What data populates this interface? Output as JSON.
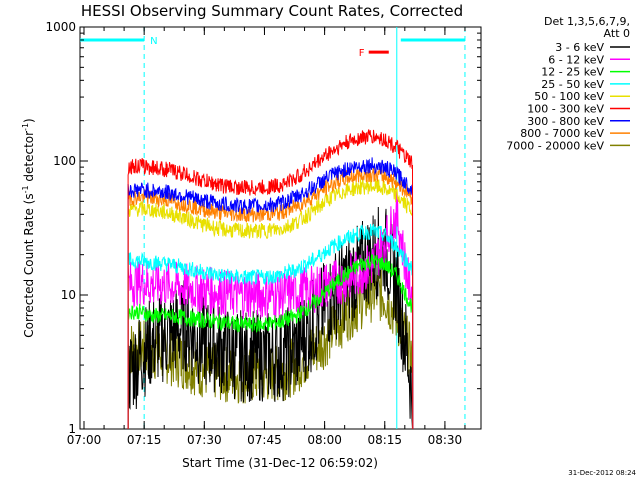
{
  "chart_data": {
    "type": "line",
    "title": "HESSI Observing Summary Count Rates, Corrected",
    "xlabel": "Start Time (31-Dec-12 06:59:02)",
    "ylabel": "Corrected Count Rate (s",
    "ylabel_sup1": "-1",
    "ylabel_mid": " detector",
    "ylabel_sup2": "-1",
    "ylabel_end": ")",
    "y_scale": "log",
    "ylim": [
      1,
      1000
    ],
    "y_ticks": [
      1,
      10,
      100,
      1000
    ],
    "y_tick_labels": [
      "1",
      "10",
      "100",
      "1000"
    ],
    "x_ticks": [
      1,
      16,
      31,
      46,
      61,
      76,
      91
    ],
    "x_tick_labels": [
      "07:00",
      "07:15",
      "07:30",
      "07:45",
      "08:00",
      "08:15",
      "08:30"
    ],
    "xlim": [
      0,
      100
    ],
    "legend_header": [
      "Det 1,3,5,6,7,9,",
      "Att 0"
    ],
    "legend_position": "right",
    "timestamp": "31-Dec-2012 08:24",
    "data_start": 12,
    "data_end": 83,
    "series": [
      {
        "name": "3 - 6 keV",
        "color": "#000000",
        "x": [
          12,
          15,
          18,
          22,
          26,
          30,
          35,
          40,
          45,
          50,
          54,
          58,
          62,
          66,
          70,
          73,
          76,
          79,
          82,
          83
        ],
        "y": [
          2.5,
          3.5,
          4.5,
          5,
          6,
          4.5,
          4,
          3.5,
          3.5,
          3.5,
          4,
          6,
          9,
          12,
          16,
          20,
          22,
          12,
          3,
          1.5
        ]
      },
      {
        "name": "6 - 12 keV",
        "color": "#ff00ff",
        "x": [
          12,
          15,
          18,
          22,
          26,
          30,
          35,
          40,
          45,
          50,
          54,
          58,
          62,
          66,
          70,
          73,
          76,
          79,
          82,
          83
        ],
        "y": [
          12,
          12.5,
          12,
          12,
          11.5,
          11,
          10.5,
          10,
          10,
          10,
          10.5,
          11,
          12,
          13,
          15,
          17,
          25,
          40,
          12,
          10
        ]
      },
      {
        "name": "12 - 25 keV",
        "color": "#00ff00",
        "x": [
          12,
          15,
          18,
          22,
          26,
          30,
          35,
          40,
          45,
          50,
          54,
          58,
          62,
          66,
          70,
          73,
          76,
          79,
          82,
          83
        ],
        "y": [
          7.5,
          7.5,
          7,
          7,
          6.8,
          6.5,
          6.3,
          6,
          6,
          6.3,
          7,
          8.5,
          11,
          14,
          17,
          18,
          17,
          14,
          9,
          8
        ]
      },
      {
        "name": "25 - 50 keV",
        "color": "#00ffff",
        "x": [
          12,
          15,
          18,
          22,
          26,
          30,
          35,
          40,
          45,
          50,
          54,
          58,
          62,
          66,
          70,
          73,
          76,
          79,
          82,
          83
        ],
        "y": [
          18,
          18,
          17.5,
          17,
          16,
          15,
          14,
          13.5,
          13.5,
          14,
          15.5,
          18,
          22,
          26,
          29,
          30,
          28,
          23,
          17,
          15
        ]
      },
      {
        "name": "50 - 100 keV",
        "color": "#e8e000",
        "x": [
          12,
          15,
          18,
          22,
          26,
          30,
          35,
          40,
          45,
          50,
          54,
          58,
          62,
          66,
          70,
          73,
          76,
          79,
          82,
          83
        ],
        "y": [
          43,
          44,
          43,
          41,
          38,
          34,
          31,
          30,
          30,
          31,
          35,
          42,
          52,
          60,
          64,
          65,
          62,
          55,
          45,
          42
        ]
      },
      {
        "name": "100 - 300 keV",
        "color": "#ff0000",
        "x": [
          12,
          15,
          18,
          22,
          26,
          30,
          35,
          40,
          45,
          50,
          54,
          58,
          62,
          66,
          70,
          73,
          76,
          79,
          82,
          83
        ],
        "y": [
          90,
          92,
          90,
          86,
          80,
          72,
          66,
          63,
          63,
          66,
          75,
          92,
          115,
          135,
          150,
          152,
          145,
          125,
          100,
          95
        ]
      },
      {
        "name": "300 - 800 keV",
        "color": "#0000ff",
        "x": [
          12,
          15,
          18,
          22,
          26,
          30,
          35,
          40,
          45,
          50,
          54,
          58,
          62,
          66,
          70,
          73,
          76,
          79,
          82,
          83
        ],
        "y": [
          60,
          61,
          60,
          58,
          55,
          51,
          48,
          46,
          46,
          48,
          54,
          63,
          76,
          86,
          92,
          93,
          89,
          80,
          65,
          60
        ]
      },
      {
        "name": "800 - 7000 keV",
        "color": "#ff8000",
        "x": [
          12,
          15,
          18,
          22,
          26,
          30,
          35,
          40,
          45,
          50,
          54,
          58,
          62,
          66,
          70,
          73,
          76,
          79,
          82,
          83
        ],
        "y": [
          53,
          54,
          53,
          51,
          48,
          44,
          41,
          40,
          40,
          41,
          46,
          54,
          65,
          74,
          79,
          80,
          77,
          69,
          57,
          53
        ]
      },
      {
        "name": "7000 - 20000 keV",
        "color": "#808000",
        "x": [
          12,
          15,
          18,
          22,
          26,
          30,
          35,
          40,
          45,
          50,
          54,
          58,
          62,
          66,
          70,
          73,
          76,
          79,
          82,
          83
        ],
        "y": [
          4,
          4,
          3.8,
          3.5,
          3.2,
          2.8,
          2.6,
          2.5,
          2.5,
          2.6,
          3,
          3.8,
          5,
          7,
          9,
          10.5,
          10,
          7,
          4,
          3
        ]
      }
    ],
    "annotations": [
      {
        "label": "N",
        "color": "#00ffff",
        "bar_y": 800,
        "x_start": 0,
        "x_end": 16,
        "marker_x": 16
      },
      {
        "label": "F",
        "color": "#ff0000",
        "bar_y": 650,
        "x_start": 72,
        "x_end": 77
      },
      {
        "label": "",
        "color": "#00ffff",
        "bar_y": 800,
        "x_start": 80,
        "x_end": 96
      }
    ],
    "vertical_markers": [
      {
        "x": 16,
        "color": "#00ffff",
        "style": "dashed"
      },
      {
        "x": 79,
        "color": "#00ffff",
        "style": "solid"
      },
      {
        "x": 96,
        "color": "#00ffff",
        "style": "dashed"
      }
    ]
  }
}
